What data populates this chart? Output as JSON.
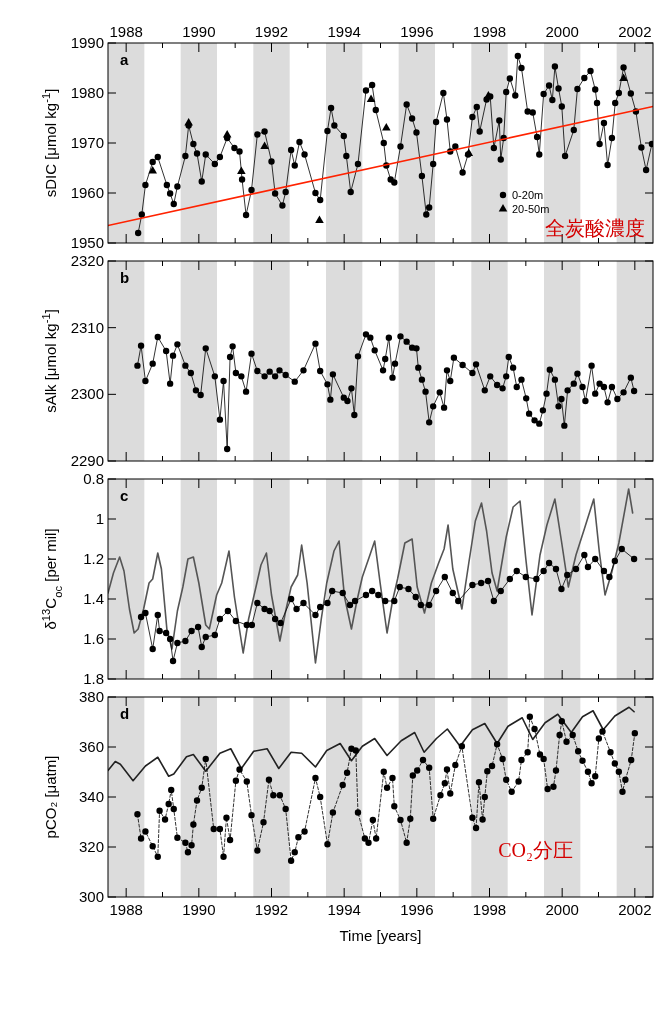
{
  "chart_data": [
    {
      "type": "line",
      "ylabel": "sDIC [μmol kg$^{-1}$]",
      "xlim": [
        1987.5,
        2002.5
      ],
      "xticks": [
        1988,
        {
          "value": 1989,
          "label": null
        },
        1990,
        {
          "value": 1991,
          "label": null
        },
        1992,
        {
          "value": 1993,
          "label": null
        },
        1994,
        {
          "value": 1995,
          "label": null
        },
        1996,
        {
          "value": 1997,
          "label": null
        },
        1998,
        {
          "value": 1999,
          "label": null
        },
        2000,
        {
          "value": 2001,
          "label": null
        },
        2002
      ],
      "x2lim": [
        1987.5,
        2002.5
      ],
      "x2ticks": [
        1988,
        {
          "value": 1989,
          "label": null
        },
        1990,
        {
          "value": 1991,
          "label": null
        },
        1992,
        {
          "value": 1993,
          "label": null
        },
        1994,
        {
          "value": 1995,
          "label": null
        },
        1996,
        {
          "value": 1997,
          "label": null
        },
        1998,
        {
          "value": 1999,
          "label": null
        },
        2000,
        {
          "value": 2001,
          "label": null
        },
        2002
      ],
      "ylim": [
        1950,
        1990
      ],
      "yticks": [
        1950,
        1960,
        1970,
        1980,
        1990
      ],
      "tick_labels": "y",
      "legend": "bottom right",
      "annotations": [
        "a",
        "全炭酸濃度"
      ],
      "bands": [
        {
          "axis": "x",
          "from": 1987.5,
          "to": 1988.5,
          "color": "#dcdcdc"
        },
        {
          "axis": "x",
          "from": 1989.5,
          "to": 1990.5,
          "color": "#dcdcdc"
        },
        {
          "axis": "x",
          "from": 1991.5,
          "to": 1992.5,
          "color": "#dcdcdc"
        },
        {
          "axis": "x",
          "from": 1993.5,
          "to": 1994.5,
          "color": "#dcdcdc"
        },
        {
          "axis": "x",
          "from": 1995.5,
          "to": 1996.5,
          "color": "#dcdcdc"
        },
        {
          "axis": "x",
          "from": 1997.5,
          "to": 1998.5,
          "color": "#dcdcdc"
        },
        {
          "axis": "x",
          "from": 1999.5,
          "to": 2000.5,
          "color": "#dcdcdc"
        },
        {
          "axis": "x",
          "from": 2001.5,
          "to": 2002.5,
          "color": "#dcdcdc"
        }
      ],
      "series": [
        {
          "name": "0-20m",
          "marker": "circle",
          "line_style": "solid",
          "color": "#000000",
          "x": [
            1988.33,
            1988.43,
            1988.53,
            1988.73,
            1988.87,
            1989.12,
            1989.21,
            1989.31,
            1989.41,
            1989.63,
            1989.72,
            1989.85,
            1989.95,
            1990.08,
            1990.19,
            1990.44,
            1990.58,
            1990.78,
            1990.98,
            1991.12,
            1991.19,
            1991.3,
            1991.45,
            1991.61,
            1991.81,
            1992.0,
            1992.1,
            1992.3,
            1992.39,
            1992.54,
            1992.64,
            1992.77,
            1992.91,
            1993.21,
            1993.34,
            1993.54,
            1993.64,
            1993.73,
            1993.99,
            1994.06,
            1994.18,
            1994.38,
            1994.6,
            1994.77,
            1994.87,
            1995.09,
            1995.16,
            1995.28,
            1995.38,
            1995.55,
            1995.72,
            1995.87,
            1995.99,
            1996.14,
            1996.26,
            1996.34,
            1996.45,
            1996.53,
            1996.73,
            1996.83,
            1996.92,
            1997.06,
            1997.26,
            1997.41,
            1997.53,
            1997.65,
            1997.73,
            1997.92,
            1998.02,
            1998.12,
            1998.27,
            1998.31,
            1998.39,
            1998.46,
            1998.56,
            1998.71,
            1998.78,
            1998.88,
            1999.05,
            1999.19,
            1999.31,
            1999.37,
            1999.49,
            1999.64,
            1999.73,
            1999.8,
            1999.9,
            1999.99,
            2000.08,
            2000.32,
            2000.42,
            2000.61,
            2000.78,
            2000.91,
            2000.96,
            2001.03,
            2001.15,
            2001.25,
            2001.37,
            2001.46,
            2001.56,
            2001.69,
            2001.89,
            2002.03,
            2002.18,
            2002.31,
            2002.47
          ],
          "values": [
            1952.0,
            1955.7,
            1961.6,
            1966.2,
            1967.2,
            1961.6,
            1959.9,
            1957.8,
            1961.3,
            1967.4,
            1973.5,
            1969.8,
            1967.9,
            1962.3,
            1967.7,
            1965.8,
            1967.2,
            1971.0,
            1969.0,
            1968.3,
            1962.7,
            1955.6,
            1960.6,
            1971.7,
            1972.3,
            1966.3,
            1959.9,
            1957.5,
            1960.2,
            1968.6,
            1965.5,
            1970.2,
            1967.7,
            1960.0,
            1958.6,
            1972.4,
            1977.0,
            1973.5,
            1971.4,
            1967.4,
            1960.2,
            1965.8,
            1980.5,
            1981.6,
            1976.6,
            1970.0,
            1965.5,
            1962.7,
            1962.1,
            1969.3,
            1977.7,
            1974.9,
            1972.1,
            1963.4,
            1955.7,
            1957.1,
            1965.8,
            1974.2,
            1980.0,
            1974.7,
            1968.3,
            1969.3,
            1964.1,
            1967.7,
            1975.2,
            1977.2,
            1972.3,
            1978.7,
            1979.3,
            1969.0,
            1974.5,
            1966.7,
            1971.0,
            1980.2,
            1982.9,
            1979.5,
            1987.4,
            1985.0,
            1976.3,
            1976.1,
            1971.2,
            1967.7,
            1979.8,
            1981.5,
            1978.6,
            1985.3,
            1980.9,
            1977.3,
            1967.4,
            1972.6,
            1980.8,
            1983.0,
            1984.4,
            1980.7,
            1978.0,
            1969.8,
            1974.0,
            1965.6,
            1971.0,
            1978.0,
            1980.0,
            1985.1,
            1979.9,
            1976.3,
            1969.1,
            1964.6,
            1969.8
          ]
        },
        {
          "name": "20-50m",
          "type": "scatter",
          "marker": "triangle",
          "color": "#000000",
          "x": [
            1988.73,
            1989.72,
            1990.78,
            1991.17,
            1991.81,
            1993.32,
            1994.74,
            1995.16,
            1997.43,
            1997.97,
            2001.69
          ],
          "values": [
            1964.4,
            1974.0,
            1971.6,
            1964.3,
            1969.3,
            1954.5,
            1978.7,
            1973.0,
            1967.9,
            1979.4,
            1982.9
          ]
        },
        {
          "marker": "none",
          "line_style": "solid",
          "color": "#ff2200",
          "x": [
            1987.5,
            2002.5
          ],
          "values": [
            1953.5,
            1977.3
          ]
        }
      ]
    },
    {
      "type": "line",
      "ylabel": "sAlk [μmol kg$^{-1}$]",
      "xlim": [
        1987.5,
        2002.5
      ],
      "xticks": [
        1988,
        {
          "value": 1989,
          "label": null
        },
        1990,
        {
          "value": 1991,
          "label": null
        },
        1992,
        {
          "value": 1993,
          "label": null
        },
        1994,
        {
          "value": 1995,
          "label": null
        },
        1996,
        {
          "value": 1997,
          "label": null
        },
        1998,
        {
          "value": 1999,
          "label": null
        },
        2000,
        {
          "value": 2001,
          "label": null
        },
        2002
      ],
      "ylim": [
        2290,
        2320
      ],
      "yticks": [
        2290,
        2300,
        2310,
        2320
      ],
      "tick_labels": "y",
      "annotations": [
        "b"
      ],
      "bands": [
        {
          "axis": "x",
          "from": 1987.5,
          "to": 1988.5,
          "color": "#dcdcdc"
        },
        {
          "axis": "x",
          "from": 1989.5,
          "to": 1990.5,
          "color": "#dcdcdc"
        },
        {
          "axis": "x",
          "from": 1991.5,
          "to": 1992.5,
          "color": "#dcdcdc"
        },
        {
          "axis": "x",
          "from": 1993.5,
          "to": 1994.5,
          "color": "#dcdcdc"
        },
        {
          "axis": "x",
          "from": 1995.5,
          "to": 1996.5,
          "color": "#dcdcdc"
        },
        {
          "axis": "x",
          "from": 1997.5,
          "to": 1998.5,
          "color": "#dcdcdc"
        },
        {
          "axis": "x",
          "from": 1999.5,
          "to": 2000.5,
          "color": "#dcdcdc"
        },
        {
          "axis": "x",
          "from": 2001.5,
          "to": 2002.5,
          "color": "#dcdcdc"
        }
      ],
      "series": [
        {
          "marker": "circle",
          "line_style": "solid",
          "color": "#000000",
          "x": [
            1988.31,
            1988.41,
            1988.53,
            1988.73,
            1988.87,
            1989.1,
            1989.21,
            1989.29,
            1989.41,
            1989.63,
            1989.78,
            1989.92,
            1990.05,
            1990.19,
            1990.44,
            1990.58,
            1990.68,
            1990.78,
            1990.86,
            1990.93,
            1991.02,
            1991.17,
            1991.3,
            1991.45,
            1991.61,
            1991.81,
            1991.95,
            1992.1,
            1992.22,
            1992.39,
            1992.64,
            1992.88,
            1993.21,
            1993.34,
            1993.54,
            1993.62,
            1993.69,
            1993.99,
            1994.09,
            1994.2,
            1994.28,
            1994.38,
            1994.6,
            1994.72,
            1994.84,
            1995.07,
            1995.13,
            1995.23,
            1995.33,
            1995.4,
            1995.55,
            1995.72,
            1995.87,
            1995.99,
            1996.04,
            1996.14,
            1996.24,
            1996.34,
            1996.45,
            1996.63,
            1996.75,
            1996.83,
            1996.92,
            1997.02,
            1997.26,
            1997.53,
            1997.63,
            1997.87,
            1998.02,
            1998.21,
            1998.36,
            1998.46,
            1998.53,
            1998.65,
            1998.75,
            1998.88,
            1999.01,
            1999.09,
            1999.24,
            1999.37,
            1999.47,
            1999.57,
            1999.66,
            1999.8,
            1999.9,
            1999.98,
            2000.06,
            2000.15,
            2000.32,
            2000.42,
            2000.56,
            2000.64,
            2000.81,
            2000.91,
            2001.03,
            2001.15,
            2001.25,
            2001.37,
            2001.52,
            2001.69,
            2001.89,
            2001.98
          ],
          "values": [
            2304.3,
            2307.3,
            2302.0,
            2304.6,
            2308.6,
            2306.5,
            2301.6,
            2305.8,
            2307.5,
            2304.3,
            2303.2,
            2300.6,
            2299.9,
            2306.9,
            2302.7,
            2296.2,
            2302.0,
            2291.8,
            2305.6,
            2307.2,
            2303.2,
            2302.7,
            2300.4,
            2306.1,
            2303.5,
            2302.7,
            2303.4,
            2302.7,
            2303.6,
            2302.9,
            2301.9,
            2303.6,
            2307.6,
            2303.5,
            2301.5,
            2299.2,
            2303.0,
            2299.5,
            2299.0,
            2300.9,
            2296.9,
            2305.7,
            2309.0,
            2308.5,
            2306.6,
            2303.6,
            2305.3,
            2308.5,
            2302.5,
            2304.6,
            2308.7,
            2307.9,
            2307.0,
            2306.9,
            2304.0,
            2302.2,
            2300.4,
            2295.8,
            2298.2,
            2300.3,
            2298.0,
            2303.6,
            2302.0,
            2305.5,
            2304.4,
            2303.2,
            2304.5,
            2300.6,
            2302.7,
            2301.4,
            2300.9,
            2302.7,
            2305.6,
            2304.0,
            2301.1,
            2302.2,
            2299.4,
            2297.1,
            2296.1,
            2295.6,
            2297.6,
            2300.1,
            2303.7,
            2302.2,
            2298.2,
            2299.3,
            2295.3,
            2300.6,
            2301.6,
            2303.1,
            2301.1,
            2299.0,
            2304.3,
            2300.1,
            2301.6,
            2301.1,
            2298.8,
            2301.1,
            2299.3,
            2300.3,
            2302.5,
            2300.5
          ]
        }
      ]
    },
    {
      "type": "line",
      "ylabel": "δ$^{13}$C$_{oc}$ [per mil]",
      "xlim": [
        1987.5,
        2002.5
      ],
      "xticks": [
        1988,
        {
          "value": 1989,
          "label": null
        },
        1990,
        {
          "value": 1991,
          "label": null
        },
        1992,
        {
          "value": 1993,
          "label": null
        },
        1994,
        {
          "value": 1995,
          "label": null
        },
        1996,
        {
          "value": 1997,
          "label": null
        },
        1998,
        {
          "value": 1999,
          "label": null
        },
        2000,
        {
          "value": 2001,
          "label": null
        },
        2002
      ],
      "ylim": [
        1.8,
        0.8
      ],
      "yticks": [
        0.8,
        1,
        1.2,
        1.4,
        1.6,
        1.8
      ],
      "tick_labels": "y",
      "annotations": [
        "c"
      ],
      "bands": [
        {
          "axis": "x",
          "from": 1987.5,
          "to": 1988.5,
          "color": "#dcdcdc"
        },
        {
          "axis": "x",
          "from": 1989.5,
          "to": 1990.5,
          "color": "#dcdcdc"
        },
        {
          "axis": "x",
          "from": 1991.5,
          "to": 1992.5,
          "color": "#dcdcdc"
        },
        {
          "axis": "x",
          "from": 1993.5,
          "to": 1994.5,
          "color": "#dcdcdc"
        },
        {
          "axis": "x",
          "from": 1995.5,
          "to": 1996.5,
          "color": "#dcdcdc"
        },
        {
          "axis": "x",
          "from": 1997.5,
          "to": 1998.5,
          "color": "#dcdcdc"
        },
        {
          "axis": "x",
          "from": 1999.5,
          "to": 2000.5,
          "color": "#dcdcdc"
        },
        {
          "axis": "x",
          "from": 2001.5,
          "to": 2002.5,
          "color": "#dcdcdc"
        }
      ],
      "series": [
        {
          "marker": "none",
          "line_style": "solid",
          "color": "#555555",
          "x": [
            1987.5,
            1987.65,
            1987.82,
            1987.94,
            1988.09,
            1988.22,
            1988.33,
            1988.48,
            1988.63,
            1988.73,
            1988.87,
            1988.97,
            1989.12,
            1989.26,
            1989.41,
            1989.56,
            1989.7,
            1989.85,
            1990.0,
            1990.19,
            1990.29,
            1990.49,
            1990.63,
            1990.83,
            1990.98,
            1991.22,
            1991.37,
            1991.56,
            1991.71,
            1991.86,
            1992.0,
            1992.23,
            1992.39,
            1992.54,
            1992.72,
            1992.83,
            1992.98,
            1993.21,
            1993.37,
            1993.52,
            1993.72,
            1993.86,
            1994.01,
            1994.2,
            1994.35,
            1994.5,
            1994.69,
            1994.84,
            1994.99,
            1995.18,
            1995.33,
            1995.47,
            1995.67,
            1995.87,
            1996.01,
            1996.21,
            1996.4,
            1996.6,
            1996.75,
            1996.86,
            1996.99,
            1997.24,
            1997.43,
            1997.61,
            1997.78,
            1997.92,
            1998.07,
            1998.21,
            1998.46,
            1998.65,
            1998.84,
            1999.0,
            1999.17,
            1999.39,
            1999.58,
            1999.8,
            1999.98,
            2000.17,
            2000.38,
            2000.61,
            2000.87,
            2001.02,
            2001.18,
            2001.36,
            2001.56,
            2001.83,
            2001.94
          ],
          "values": [
            1.37,
            1.27,
            1.19,
            1.26,
            1.45,
            1.57,
            1.55,
            1.45,
            1.32,
            1.3,
            1.17,
            1.25,
            1.55,
            1.65,
            1.46,
            1.34,
            1.2,
            1.19,
            1.32,
            1.53,
            1.55,
            1.38,
            1.32,
            1.16,
            1.39,
            1.67,
            1.5,
            1.35,
            1.23,
            1.17,
            1.38,
            1.61,
            1.46,
            1.34,
            1.28,
            1.13,
            1.32,
            1.72,
            1.5,
            1.32,
            1.16,
            1.11,
            1.39,
            1.55,
            1.41,
            1.29,
            1.19,
            1.11,
            1.32,
            1.57,
            1.41,
            1.3,
            1.12,
            1.1,
            1.34,
            1.47,
            1.32,
            1.22,
            1.15,
            1.03,
            1.25,
            1.45,
            1.22,
            1.01,
            0.92,
            1.06,
            1.27,
            1.36,
            1.09,
            0.94,
            0.91,
            1.2,
            1.48,
            1.18,
            1.03,
            0.9,
            1.11,
            1.34,
            1.18,
            1.05,
            0.9,
            1.16,
            1.38,
            1.27,
            1.12,
            0.85,
            0.97
          ]
        },
        {
          "marker": "circle",
          "line_style": "solid",
          "color": "#000000",
          "x": [
            1988.41,
            1988.53,
            1988.73,
            1988.87,
            1988.92,
            1989.1,
            1989.21,
            1989.29,
            1989.41,
            1989.63,
            1989.8,
            1989.98,
            1990.08,
            1990.19,
            1990.44,
            1990.58,
            1990.8,
            1991.02,
            1991.32,
            1991.46,
            1991.61,
            1991.81,
            1991.95,
            1992.1,
            1992.25,
            1992.54,
            1992.69,
            1992.88,
            1993.21,
            1993.34,
            1993.54,
            1993.67,
            1993.96,
            1994.16,
            1994.3,
            1994.6,
            1994.77,
            1994.94,
            1995.13,
            1995.38,
            1995.53,
            1995.77,
            1995.97,
            1996.11,
            1996.34,
            1996.53,
            1996.77,
            1996.99,
            1997.14,
            1997.53,
            1997.77,
            1997.96,
            1998.12,
            1998.31,
            1998.56,
            1998.75,
            1999.0,
            1999.29,
            1999.49,
            1999.64,
            1999.83,
            1999.98,
            2000.14,
            2000.38,
            2000.61,
            2000.71,
            2000.91,
            2001.15,
            2001.3,
            2001.45,
            2001.64,
            2001.98
          ],
          "values": [
            1.49,
            1.47,
            1.65,
            1.48,
            1.56,
            1.57,
            1.6,
            1.71,
            1.62,
            1.61,
            1.56,
            1.54,
            1.64,
            1.59,
            1.58,
            1.5,
            1.46,
            1.51,
            1.53,
            1.53,
            1.42,
            1.45,
            1.46,
            1.5,
            1.52,
            1.4,
            1.45,
            1.42,
            1.48,
            1.44,
            1.42,
            1.36,
            1.37,
            1.43,
            1.41,
            1.38,
            1.36,
            1.38,
            1.41,
            1.41,
            1.34,
            1.35,
            1.39,
            1.43,
            1.43,
            1.36,
            1.29,
            1.37,
            1.41,
            1.33,
            1.32,
            1.31,
            1.41,
            1.36,
            1.3,
            1.26,
            1.29,
            1.3,
            1.26,
            1.22,
            1.25,
            1.35,
            1.28,
            1.25,
            1.18,
            1.24,
            1.2,
            1.26,
            1.29,
            1.21,
            1.15,
            1.2
          ]
        }
      ]
    },
    {
      "type": "line",
      "xlabel": "Time [years]",
      "ylabel": "pCO₂ [μatm]",
      "xlim": [
        1987.5,
        2002.5
      ],
      "xticks": [
        1988,
        {
          "value": 1989,
          "label": null
        },
        1990,
        {
          "value": 1991,
          "label": null
        },
        1992,
        {
          "value": 1993,
          "label": null
        },
        1994,
        {
          "value": 1995,
          "label": null
        },
        1996,
        {
          "value": 1997,
          "label": null
        },
        1998,
        {
          "value": 1999,
          "label": null
        },
        2000,
        {
          "value": 2001,
          "label": null
        },
        2002
      ],
      "ylim": [
        300,
        380
      ],
      "yticks": [
        300,
        320,
        340,
        360,
        380
      ],
      "annotations": [
        "d",
        "CO₂分圧"
      ],
      "bands": [
        {
          "axis": "x",
          "from": 1987.5,
          "to": 1988.5,
          "color": "#dcdcdc"
        },
        {
          "axis": "x",
          "from": 1989.5,
          "to": 1990.5,
          "color": "#dcdcdc"
        },
        {
          "axis": "x",
          "from": 1991.5,
          "to": 1992.5,
          "color": "#dcdcdc"
        },
        {
          "axis": "x",
          "from": 1993.5,
          "to": 1994.5,
          "color": "#dcdcdc"
        },
        {
          "axis": "x",
          "from": 1995.5,
          "to": 1996.5,
          "color": "#dcdcdc"
        },
        {
          "axis": "x",
          "from": 1997.5,
          "to": 1998.5,
          "color": "#dcdcdc"
        },
        {
          "axis": "x",
          "from": 1999.5,
          "to": 2000.5,
          "color": "#dcdcdc"
        },
        {
          "axis": "x",
          "from": 2001.5,
          "to": 2002.5,
          "color": "#dcdcdc"
        }
      ],
      "series": [
        {
          "marker": "none",
          "line_style": "solid",
          "color": "#222222",
          "x": [
            1987.5,
            1987.7,
            1987.84,
            1988.19,
            1988.53,
            1988.87,
            1989.17,
            1989.31,
            1989.66,
            1989.85,
            1990.19,
            1990.58,
            1990.88,
            1991.17,
            1991.51,
            1991.88,
            1992.2,
            1992.54,
            1992.83,
            1993.21,
            1993.52,
            1993.89,
            1994.2,
            1994.5,
            1994.84,
            1995.18,
            1995.57,
            1995.94,
            1996.2,
            1996.54,
            1996.84,
            1997.19,
            1997.53,
            1997.87,
            1998.21,
            1998.51,
            1998.9,
            1999.19,
            1999.53,
            1999.88,
            2000.25,
            2000.56,
            2000.85,
            2001.13,
            2001.45,
            2001.84,
            2001.98
          ],
          "values": [
            350.6,
            354.2,
            353.1,
            346.5,
            352.4,
            355.9,
            348.3,
            349.2,
            356.1,
            357.0,
            350.3,
            357.5,
            359.3,
            351.4,
            358.3,
            359.3,
            351.4,
            357.9,
            357.5,
            352.0,
            358.6,
            361.4,
            354.5,
            360.3,
            363.4,
            356.6,
            362.5,
            365.8,
            357.9,
            363.4,
            367.2,
            360.3,
            366.9,
            369.4,
            361.4,
            368.3,
            371.7,
            363.0,
            369.7,
            373.1,
            365.8,
            372.1,
            374.5,
            366.9,
            372.4,
            375.9,
            374.1
          ]
        },
        {
          "marker": "circle",
          "line_style": "dashed",
          "color": "#000000",
          "x": [
            1988.31,
            1988.41,
            1988.53,
            1988.73,
            1988.87,
            1988.92,
            1989.07,
            1989.17,
            1989.24,
            1989.31,
            1989.41,
            1989.63,
            1989.7,
            1989.8,
            1989.85,
            1989.95,
            1990.08,
            1990.19,
            1990.41,
            1990.58,
            1990.68,
            1990.76,
            1990.86,
            1991.02,
            1991.12,
            1991.32,
            1991.45,
            1991.61,
            1991.78,
            1991.93,
            1992.05,
            1992.23,
            1992.39,
            1992.54,
            1992.64,
            1992.74,
            1992.91,
            1993.21,
            1993.34,
            1993.54,
            1993.69,
            1993.96,
            1994.08,
            1994.2,
            1994.32,
            1994.38,
            1994.57,
            1994.67,
            1994.79,
            1994.88,
            1995.09,
            1995.18,
            1995.33,
            1995.38,
            1995.55,
            1995.72,
            1995.82,
            1995.89,
            1996.01,
            1996.17,
            1996.34,
            1996.45,
            1996.65,
            1996.77,
            1996.83,
            1996.92,
            1997.06,
            1997.24,
            1997.53,
            1997.63,
            1997.71,
            1997.81,
            1997.87,
            1997.94,
            1998.07,
            1998.21,
            1998.36,
            1998.46,
            1998.61,
            1998.8,
            1998.88,
            1999.05,
            1999.11,
            1999.24,
            1999.39,
            1999.49,
            1999.6,
            1999.76,
            1999.83,
            1999.93,
            1999.99,
            2000.12,
            2000.29,
            2000.44,
            2000.56,
            2000.71,
            2000.81,
            2000.91,
            2001.01,
            2001.11,
            2001.33,
            2001.45,
            2001.56,
            2001.66,
            2001.74,
            2001.9,
            2002.0
          ],
          "values": [
            333.1,
            323.4,
            326.2,
            320.3,
            316.1,
            334.5,
            331.0,
            337.2,
            342.8,
            335.2,
            323.7,
            321.7,
            317.9,
            320.7,
            329.0,
            338.6,
            343.7,
            355.2,
            327.2,
            327.2,
            316.1,
            331.7,
            322.8,
            346.5,
            351.0,
            346.2,
            332.7,
            318.6,
            329.9,
            346.9,
            340.7,
            340.7,
            335.2,
            314.5,
            317.9,
            323.9,
            326.2,
            347.6,
            340.0,
            321.1,
            333.8,
            344.8,
            349.7,
            359.3,
            358.6,
            333.8,
            323.4,
            321.7,
            330.8,
            323.4,
            350.1,
            343.7,
            347.6,
            336.3,
            330.8,
            321.7,
            331.3,
            348.6,
            350.6,
            354.8,
            351.7,
            331.3,
            340.7,
            345.5,
            351.0,
            341.4,
            352.8,
            360.3,
            331.7,
            327.6,
            345.9,
            331.0,
            340.0,
            350.3,
            352.4,
            361.1,
            355.2,
            346.9,
            342.1,
            346.2,
            354.8,
            357.9,
            372.1,
            367.2,
            357.0,
            355.2,
            343.2,
            344.1,
            350.6,
            364.8,
            370.3,
            362.1,
            364.8,
            358.3,
            354.5,
            350.1,
            345.5,
            348.3,
            363.4,
            366.2,
            357.9,
            353.4,
            350.1,
            342.1,
            346.9,
            354.8,
            365.5
          ]
        }
      ]
    }
  ]
}
